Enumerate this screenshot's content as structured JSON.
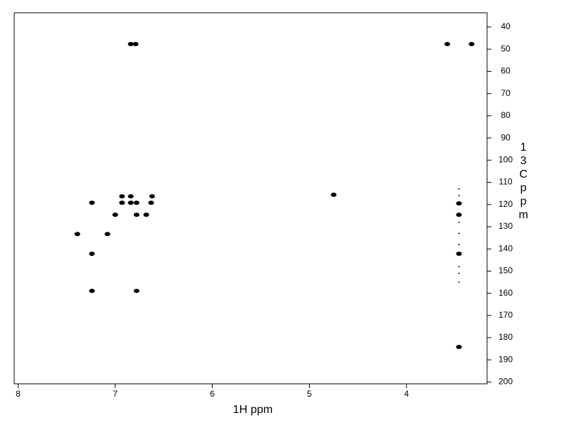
{
  "chart_data": {
    "type": "scatter",
    "xlabel": "1H ppm",
    "ylabel": "13C ppm",
    "xlim": [
      8.04,
      3.17
    ],
    "ylim": [
      33.6,
      200.8
    ],
    "xticks": [
      8,
      7,
      6,
      5,
      4
    ],
    "yticks": [
      40,
      50,
      60,
      70,
      80,
      90,
      100,
      110,
      120,
      130,
      140,
      150,
      160,
      170,
      180,
      190,
      200
    ],
    "series": [
      {
        "color": "#000000",
        "marker_size": 4,
        "x": [
          6.84,
          6.79,
          3.58,
          3.33,
          6.93,
          6.84,
          6.62,
          6.93,
          6.84,
          6.78,
          6.63,
          7.24,
          7.0,
          6.78,
          6.68,
          7.39,
          7.08,
          7.24,
          7.24,
          6.78,
          4.75,
          3.46,
          3.46,
          3.46,
          3.46
        ],
        "values": [
          47.7,
          47.7,
          47.7,
          47.7,
          116.3,
          116.3,
          116.3,
          119.2,
          119.2,
          119.2,
          119.2,
          119.2,
          124.6,
          124.6,
          124.6,
          133.3,
          133.3,
          142.2,
          158.9,
          158.9,
          115.6,
          119.5,
          124.6,
          142.2,
          184.2
        ]
      },
      {
        "color": "#000000",
        "marker_size": 1.2,
        "x": [
          3.46,
          3.46,
          3.46,
          3.46,
          3.46,
          3.46,
          3.46,
          3.46
        ],
        "values": [
          113,
          116,
          128,
          133,
          138,
          148,
          151,
          155
        ]
      }
    ]
  }
}
